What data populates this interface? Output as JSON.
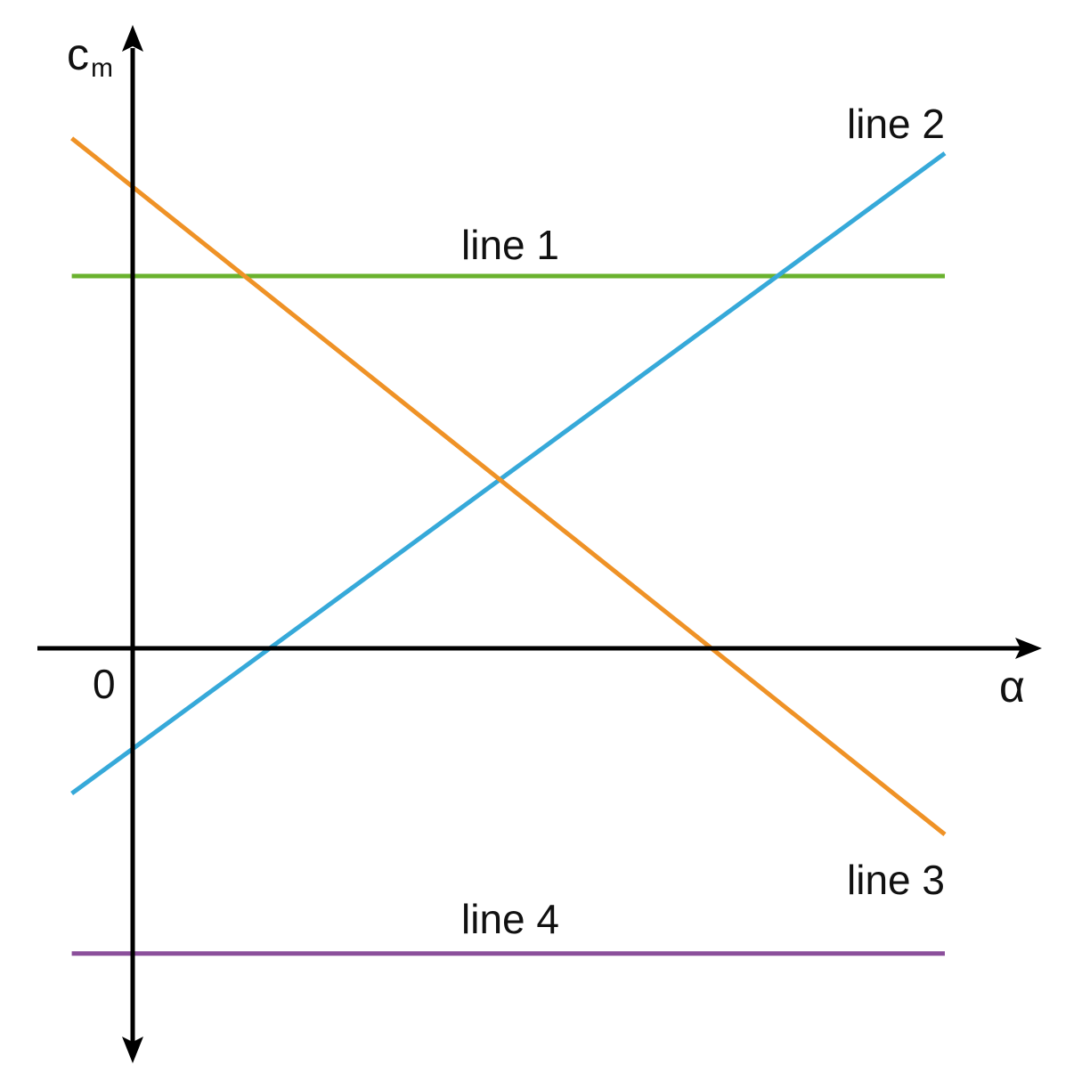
{
  "chart_data": {
    "type": "line",
    "title": "",
    "xlabel": "α",
    "ylabel": {
      "main": "c",
      "sub": "m"
    },
    "origin_label": "0",
    "xlim": [
      -0.15,
      2.2
    ],
    "ylim": [
      -1.1,
      1.63
    ],
    "grid": false,
    "series": [
      {
        "name": "line 1",
        "color": "#6ab22e",
        "x": [
          -0.15,
          2.0
        ],
        "y": [
          1.0,
          1.0
        ]
      },
      {
        "name": "line 2",
        "color": "#36a9d9",
        "x": [
          -0.15,
          2.0
        ],
        "y": [
          -0.39,
          1.33
        ]
      },
      {
        "name": "line 3",
        "color": "#ef9226",
        "x": [
          -0.15,
          2.0
        ],
        "y": [
          1.37,
          -0.5
        ]
      },
      {
        "name": "line 4",
        "color": "#8b4f9b",
        "x": [
          -0.15,
          2.0
        ],
        "y": [
          -0.82,
          -0.82
        ]
      }
    ]
  }
}
